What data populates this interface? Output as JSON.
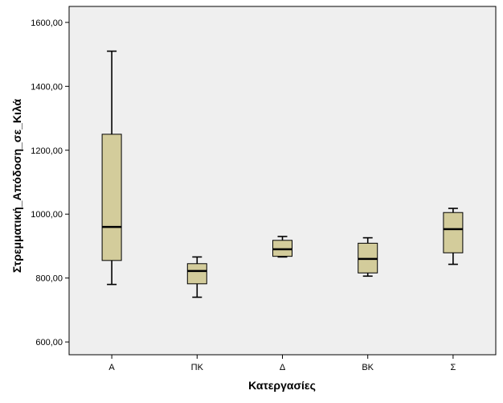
{
  "chart_data": {
    "type": "boxplot",
    "title": "",
    "xlabel": "Κατεργασίες",
    "ylabel": "Στρεμματική_Απόδοση_σε_Κιλά",
    "ylim": [
      560,
      1650
    ],
    "yticks": [
      600,
      800,
      1000,
      1200,
      1400,
      1600
    ],
    "ytick_labels": [
      "600,00",
      "800,00",
      "1000,00",
      "1200,00",
      "1400,00",
      "1600,00"
    ],
    "grid": false,
    "colors": {
      "box_fill": "#d3cc9b",
      "plot_bg": "#efefef",
      "stroke": "#000000"
    },
    "categories": [
      "Α",
      "ΠΚ",
      "Δ",
      "ΒΚ",
      "Σ"
    ],
    "boxes": [
      {
        "category": "Α",
        "min": 780,
        "q1": 855,
        "median": 960,
        "q3": 1250,
        "max": 1510
      },
      {
        "category": "ΠΚ",
        "min": 740,
        "q1": 782,
        "median": 822,
        "q3": 845,
        "max": 866
      },
      {
        "category": "Δ",
        "min": 866,
        "q1": 868,
        "median": 890,
        "q3": 918,
        "max": 930
      },
      {
        "category": "ΒΚ",
        "min": 806,
        "q1": 816,
        "median": 860,
        "q3": 909,
        "max": 926
      },
      {
        "category": "Σ",
        "min": 843,
        "q1": 879,
        "median": 953,
        "q3": 1005,
        "max": 1018
      }
    ]
  }
}
